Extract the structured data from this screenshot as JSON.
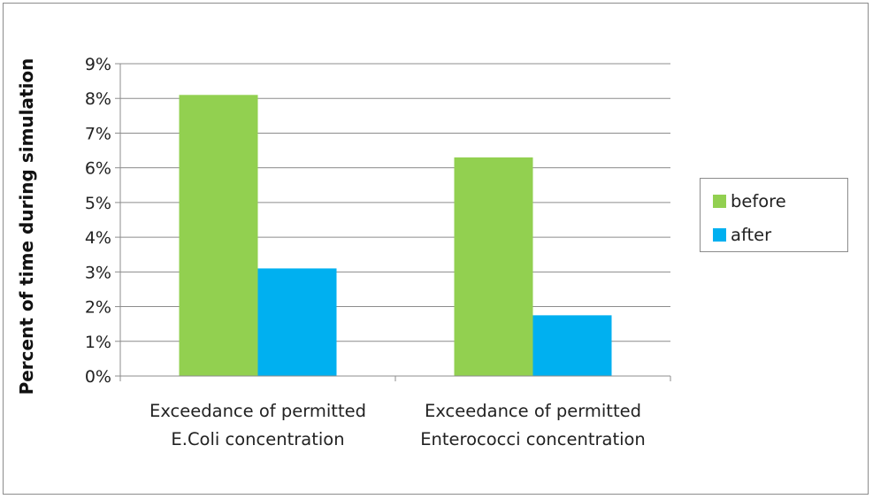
{
  "chart_data": {
    "type": "bar",
    "title": "",
    "xlabel": "",
    "ylabel": "Percent of time during simulation",
    "categories": [
      [
        "Exceedance of permitted",
        "E.Coli concentration"
      ],
      [
        "Exceedance of permitted",
        "Enterococci concentration"
      ]
    ],
    "series": [
      {
        "name": "before",
        "color": "#92d050",
        "values": [
          8.1,
          6.3
        ]
      },
      {
        "name": "after",
        "color": "#00b0f0",
        "values": [
          3.1,
          1.75
        ]
      }
    ],
    "ylim": [
      0,
      9
    ],
    "yticks": [
      "0%",
      "1%",
      "2%",
      "3%",
      "4%",
      "5%",
      "6%",
      "7%",
      "8%",
      "9%"
    ],
    "unit": "%",
    "grid": true,
    "legend_position": "right"
  }
}
